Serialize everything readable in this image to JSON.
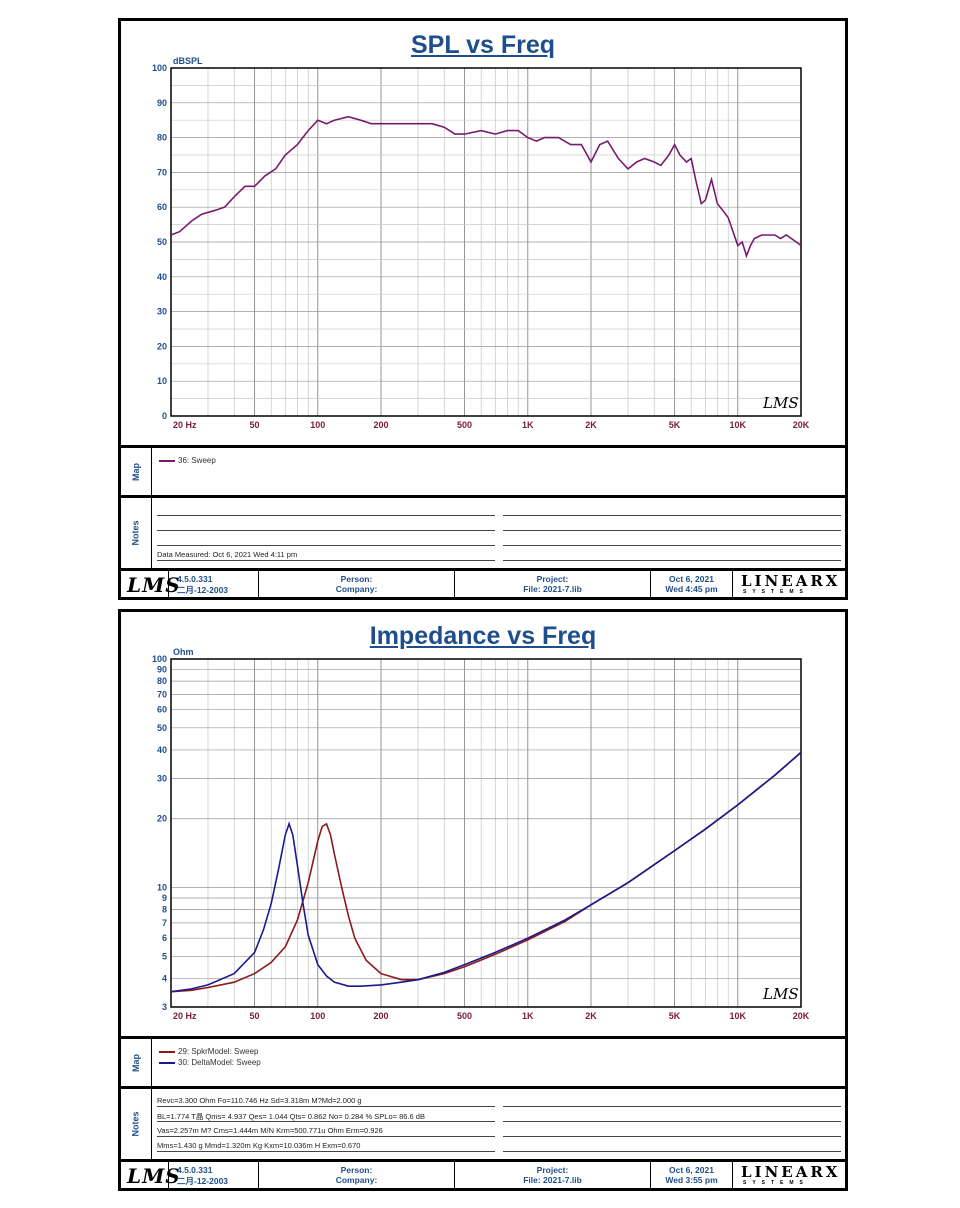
{
  "sheets": [
    {
      "footer": {
        "version": "4.5.0.331",
        "build_date": "二月-12-2003",
        "person_label": "Person:",
        "company_label": "Company:",
        "project_label": "Project:",
        "file_label": "File: 2021-7.lib",
        "date": "Oct  6, 2021",
        "time": "Wed  4:45 pm",
        "lms_logo": "LMS",
        "linearx_logo": "LINEARX",
        "linearx_sub": "SYSTEMS"
      },
      "map_label": "Map",
      "notes_label": "Notes",
      "legend": [
        {
          "label": "36: Sweep",
          "color": "#7a1a6e"
        }
      ],
      "notes": [
        "Data Measured: Oct  6, 2021  Wed  4:11 pm"
      ]
    },
    {
      "footer": {
        "version": "4.5.0.331",
        "build_date": "二月-12-2003",
        "person_label": "Person:",
        "company_label": "Company:",
        "project_label": "Project:",
        "file_label": "File: 2021-7.lib",
        "date": "Oct  6, 2021",
        "time": "Wed  3:55 pm",
        "lms_logo": "LMS",
        "linearx_logo": "LINEARX",
        "linearx_sub": "SYSTEMS"
      },
      "map_label": "Map",
      "notes_label": "Notes",
      "legend": [
        {
          "label": "29: SpkrModel: Sweep",
          "color": "#8b1a1a"
        },
        {
          "label": "30: DeltaModel: Sweep",
          "color": "#1a1a8b"
        }
      ],
      "notes": [
        "Revc=3.300 Ohm  Fo=110.746 Hz  Sd=3.318m M?Md=2.000 g",
        "BL=1.774 T晶  Qms= 4.937  Qes= 1.044  Qts= 0.862  No= 0.284 %  SPLo= 86.6 dB",
        "Vas=2.257m M? Cms=1.444m M/N  Krm=500.771u Ohm  Erm=0.926",
        "Mms=1.430 g  Mmd=1.320m Kg  Kxm=10.036m H  Exm=0.670"
      ]
    }
  ],
  "chart_data": [
    {
      "type": "line",
      "title": "SPL vs Freq",
      "ylabel": "dBSPL",
      "xscale": "log",
      "xlim": [
        20,
        20000
      ],
      "ylim": [
        0,
        100
      ],
      "x_ticks": [
        20,
        50,
        100,
        200,
        500,
        1000,
        2000,
        5000,
        10000,
        20000
      ],
      "x_tick_labels": [
        "20  Hz",
        "50",
        "100",
        "200",
        "500",
        "1K",
        "2K",
        "5K",
        "10K",
        "20K"
      ],
      "y_ticks": [
        0,
        10,
        20,
        30,
        40,
        50,
        60,
        70,
        80,
        90,
        100
      ],
      "y_tick_labels": [
        "0",
        "10",
        "20",
        "30",
        "40",
        "50",
        "60",
        "70",
        "80",
        "90",
        "100"
      ],
      "grid": true,
      "watermark": "LMS",
      "series": [
        {
          "name": "36: Sweep",
          "color": "#7a1a6e",
          "x": [
            20,
            22,
            25,
            28,
            32,
            36,
            40,
            45,
            50,
            56,
            63,
            70,
            80,
            90,
            100,
            110,
            120,
            140,
            160,
            180,
            200,
            250,
            300,
            350,
            400,
            450,
            500,
            600,
            700,
            800,
            900,
            1000,
            1100,
            1200,
            1400,
            1600,
            1800,
            2000,
            2200,
            2400,
            2700,
            3000,
            3300,
            3600,
            4000,
            4300,
            4700,
            5000,
            5300,
            5700,
            6000,
            6300,
            6700,
            7000,
            7500,
            8000,
            8500,
            9000,
            10000,
            10500,
            11000,
            11500,
            12000,
            13000,
            14000,
            15000,
            16000,
            17000,
            18000,
            19000,
            20000
          ],
          "y": [
            52,
            53,
            56,
            58,
            59,
            60,
            63,
            66,
            66,
            69,
            71,
            75,
            78,
            82,
            85,
            84,
            85,
            86,
            85,
            84,
            84,
            84,
            84,
            84,
            83,
            81,
            81,
            82,
            81,
            82,
            82,
            80,
            79,
            80,
            80,
            78,
            78,
            73,
            78,
            79,
            74,
            71,
            73,
            74,
            73,
            72,
            75,
            78,
            75,
            73,
            74,
            68,
            61,
            62,
            68,
            61,
            59,
            57,
            49,
            50,
            46,
            49,
            51,
            52,
            52,
            52,
            51,
            52,
            51,
            50,
            49
          ]
        }
      ]
    },
    {
      "type": "line",
      "title": "Impedance vs Freq",
      "ylabel": "Ohm",
      "xscale": "log",
      "yscale": "log",
      "xlim": [
        20,
        20000
      ],
      "ylim": [
        3,
        100
      ],
      "x_ticks": [
        20,
        50,
        100,
        200,
        500,
        1000,
        2000,
        5000,
        10000,
        20000
      ],
      "x_tick_labels": [
        "20  Hz",
        "50",
        "100",
        "200",
        "500",
        "1K",
        "2K",
        "5K",
        "10K",
        "20K"
      ],
      "y_ticks": [
        3,
        4,
        5,
        6,
        7,
        8,
        9,
        10,
        20,
        30,
        40,
        50,
        60,
        70,
        80,
        90,
        100
      ],
      "y_tick_labels": [
        "3",
        "4",
        "5",
        "6",
        "7",
        "8",
        "9",
        "10",
        "20",
        "30",
        "40",
        "50",
        "60",
        "70",
        "80",
        "90",
        "100"
      ],
      "grid": true,
      "watermark": "LMS",
      "series": [
        {
          "name": "29: SpkrModel: Sweep",
          "color": "#8b1a1a",
          "x": [
            20,
            25,
            30,
            40,
            50,
            60,
            70,
            80,
            90,
            100,
            105,
            110,
            115,
            120,
            130,
            140,
            150,
            170,
            200,
            250,
            300,
            400,
            500,
            700,
            1000,
            1500,
            2000,
            3000,
            5000,
            7000,
            10000,
            15000,
            20000
          ],
          "y": [
            3.5,
            3.55,
            3.65,
            3.85,
            4.2,
            4.7,
            5.5,
            7.2,
            10.5,
            16,
            18.5,
            19,
            17,
            14,
            10,
            7.5,
            6,
            4.8,
            4.2,
            3.95,
            3.95,
            4.2,
            4.5,
            5.1,
            5.9,
            7.1,
            8.4,
            10.5,
            14.5,
            18,
            23,
            31,
            39
          ]
        },
        {
          "name": "30: DeltaModel: Sweep",
          "color": "#1a1a8b",
          "x": [
            20,
            25,
            30,
            40,
            50,
            55,
            60,
            65,
            70,
            73,
            76,
            80,
            85,
            90,
            100,
            110,
            120,
            140,
            160,
            200,
            250,
            300,
            400,
            500,
            700,
            1000,
            1500,
            2000,
            3000,
            5000,
            7000,
            10000,
            15000,
            20000
          ],
          "y": [
            3.5,
            3.6,
            3.75,
            4.2,
            5.2,
            6.5,
            8.5,
            12,
            17,
            19,
            17,
            12.5,
            8.5,
            6.2,
            4.6,
            4.1,
            3.85,
            3.7,
            3.7,
            3.75,
            3.85,
            3.95,
            4.25,
            4.6,
            5.2,
            6,
            7.2,
            8.4,
            10.5,
            14.5,
            18,
            23,
            31,
            39
          ]
        }
      ]
    }
  ]
}
